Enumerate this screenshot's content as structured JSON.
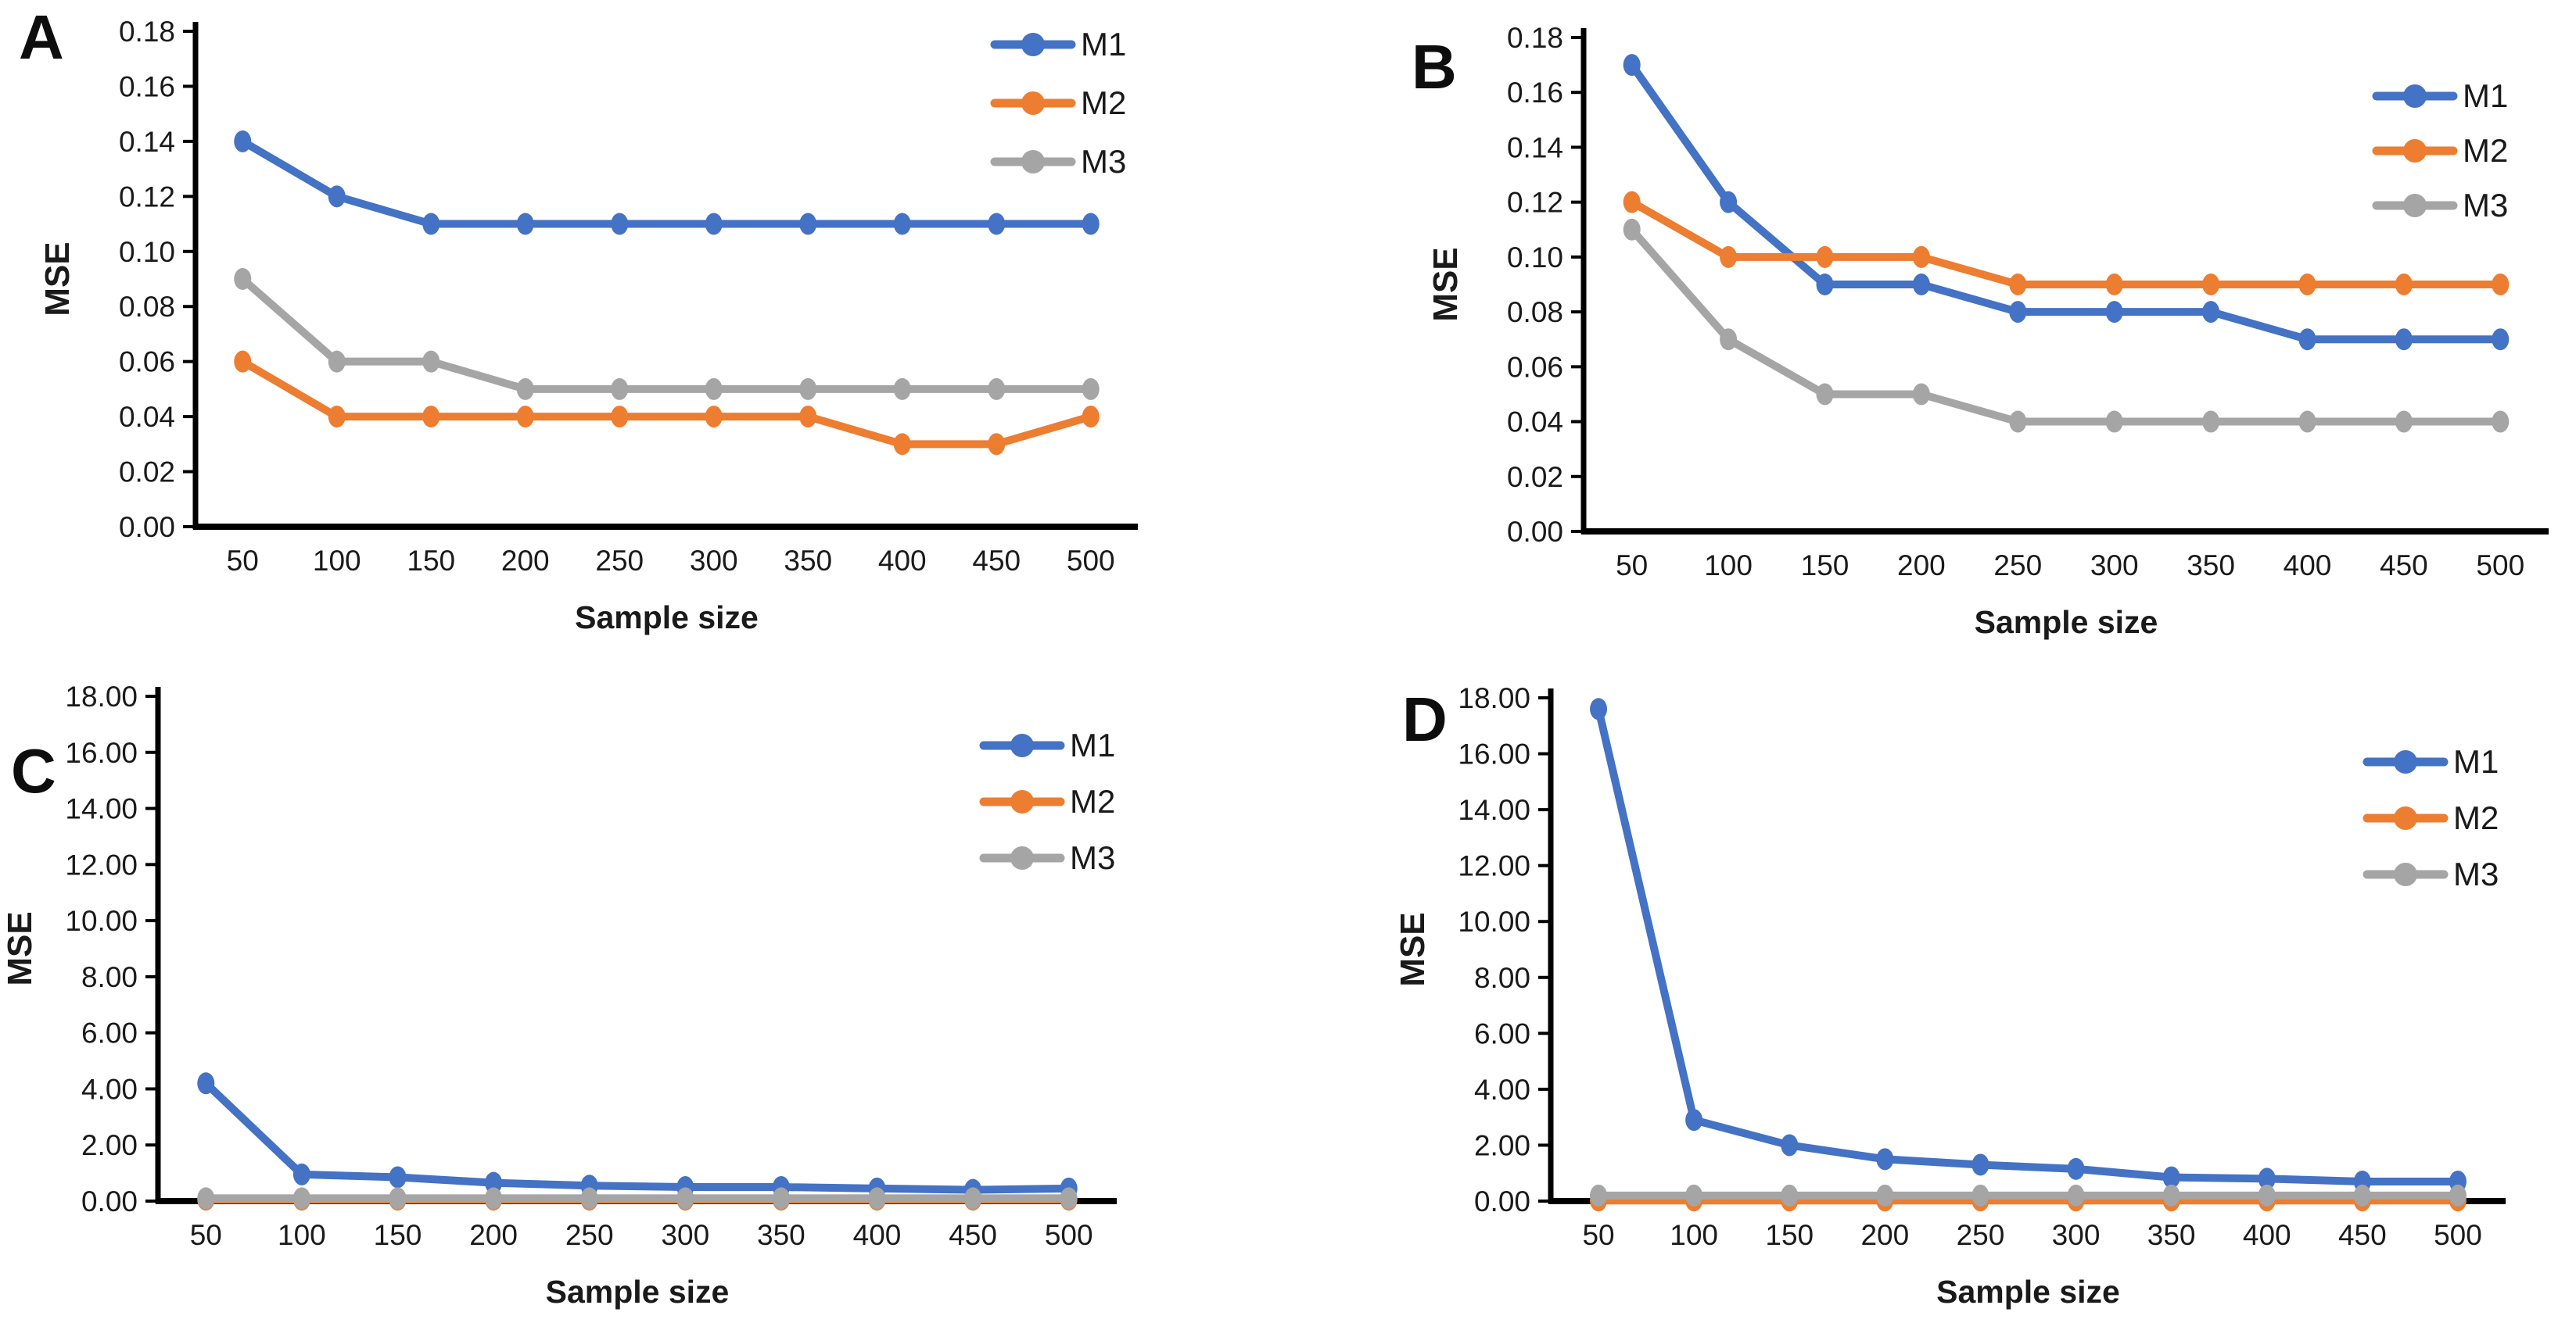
{
  "figure": {
    "background_color": "#FFFFFF",
    "axis_color": "#000000",
    "panels": [
      "A",
      "B",
      "C",
      "D"
    ]
  },
  "legend": {
    "items": [
      "M1",
      "M2",
      "M3"
    ],
    "colors": [
      "#4472C4",
      "#ED7D31",
      "#A5A5A5"
    ]
  },
  "chart_data": [
    {
      "id": "A",
      "panel_label": "A",
      "type": "line",
      "title": "",
      "xlabel": "Sample size",
      "ylabel": "MSE",
      "x": [
        50,
        100,
        150,
        200,
        250,
        300,
        350,
        400,
        450,
        500
      ],
      "ylim": [
        0,
        0.18
      ],
      "ytick_step": 0.02,
      "ytick_decimals": 2,
      "grid": false,
      "legend_position": "upper-right",
      "series": [
        {
          "name": "M1",
          "color": "#4472C4",
          "values": [
            0.14,
            0.12,
            0.11,
            0.11,
            0.11,
            0.11,
            0.11,
            0.11,
            0.11,
            0.11
          ]
        },
        {
          "name": "M2",
          "color": "#ED7D31",
          "values": [
            0.06,
            0.04,
            0.04,
            0.04,
            0.04,
            0.04,
            0.04,
            0.03,
            0.03,
            0.04
          ]
        },
        {
          "name": "M3",
          "color": "#A5A5A5",
          "values": [
            0.09,
            0.06,
            0.06,
            0.05,
            0.05,
            0.05,
            0.05,
            0.05,
            0.05,
            0.05
          ]
        }
      ]
    },
    {
      "id": "B",
      "panel_label": "B",
      "type": "line",
      "title": "",
      "xlabel": "Sample size",
      "ylabel": "MSE",
      "x": [
        50,
        100,
        150,
        200,
        250,
        300,
        350,
        400,
        450,
        500
      ],
      "ylim": [
        0,
        0.18
      ],
      "ytick_step": 0.02,
      "ytick_decimals": 2,
      "grid": false,
      "legend_position": "upper-right",
      "series": [
        {
          "name": "M1",
          "color": "#4472C4",
          "values": [
            0.17,
            0.12,
            0.09,
            0.09,
            0.08,
            0.08,
            0.08,
            0.07,
            0.07,
            0.07
          ]
        },
        {
          "name": "M2",
          "color": "#ED7D31",
          "values": [
            0.12,
            0.1,
            0.1,
            0.1,
            0.09,
            0.09,
            0.09,
            0.09,
            0.09,
            0.09
          ]
        },
        {
          "name": "M3",
          "color": "#A5A5A5",
          "values": [
            0.11,
            0.07,
            0.05,
            0.05,
            0.04,
            0.04,
            0.04,
            0.04,
            0.04,
            0.04
          ]
        }
      ]
    },
    {
      "id": "C",
      "panel_label": "C",
      "type": "line",
      "title": "",
      "xlabel": "Sample size",
      "ylabel": "MSE",
      "x": [
        50,
        100,
        150,
        200,
        250,
        300,
        350,
        400,
        450,
        500
      ],
      "ylim": [
        0,
        18
      ],
      "ytick_step": 2,
      "ytick_decimals": 2,
      "grid": false,
      "legend_position": "upper-right",
      "series": [
        {
          "name": "M1",
          "color": "#4472C4",
          "values": [
            4.2,
            0.95,
            0.85,
            0.65,
            0.55,
            0.5,
            0.5,
            0.45,
            0.4,
            0.45
          ]
        },
        {
          "name": "M2",
          "color": "#ED7D31",
          "values": [
            0.05,
            0.05,
            0.05,
            0.05,
            0.05,
            0.05,
            0.05,
            0.05,
            0.05,
            0.05
          ]
        },
        {
          "name": "M3",
          "color": "#A5A5A5",
          "values": [
            0.1,
            0.1,
            0.1,
            0.1,
            0.1,
            0.1,
            0.1,
            0.1,
            0.1,
            0.1
          ]
        }
      ]
    },
    {
      "id": "D",
      "panel_label": "D",
      "type": "line",
      "title": "",
      "xlabel": "Sample size",
      "ylabel": "MSE",
      "x": [
        50,
        100,
        150,
        200,
        250,
        300,
        350,
        400,
        450,
        500
      ],
      "ylim": [
        0,
        18
      ],
      "ytick_step": 2,
      "ytick_decimals": 2,
      "grid": false,
      "legend_position": "upper-right",
      "series": [
        {
          "name": "M1",
          "color": "#4472C4",
          "values": [
            17.6,
            2.9,
            2.0,
            1.5,
            1.3,
            1.15,
            0.85,
            0.8,
            0.7,
            0.7
          ]
        },
        {
          "name": "M2",
          "color": "#ED7D31",
          "values": [
            0.02,
            0.02,
            0.02,
            0.02,
            0.02,
            0.02,
            0.02,
            0.02,
            0.02,
            0.02
          ]
        },
        {
          "name": "M3",
          "color": "#A5A5A5",
          "values": [
            0.2,
            0.2,
            0.2,
            0.2,
            0.2,
            0.2,
            0.2,
            0.2,
            0.2,
            0.2
          ]
        }
      ]
    }
  ]
}
